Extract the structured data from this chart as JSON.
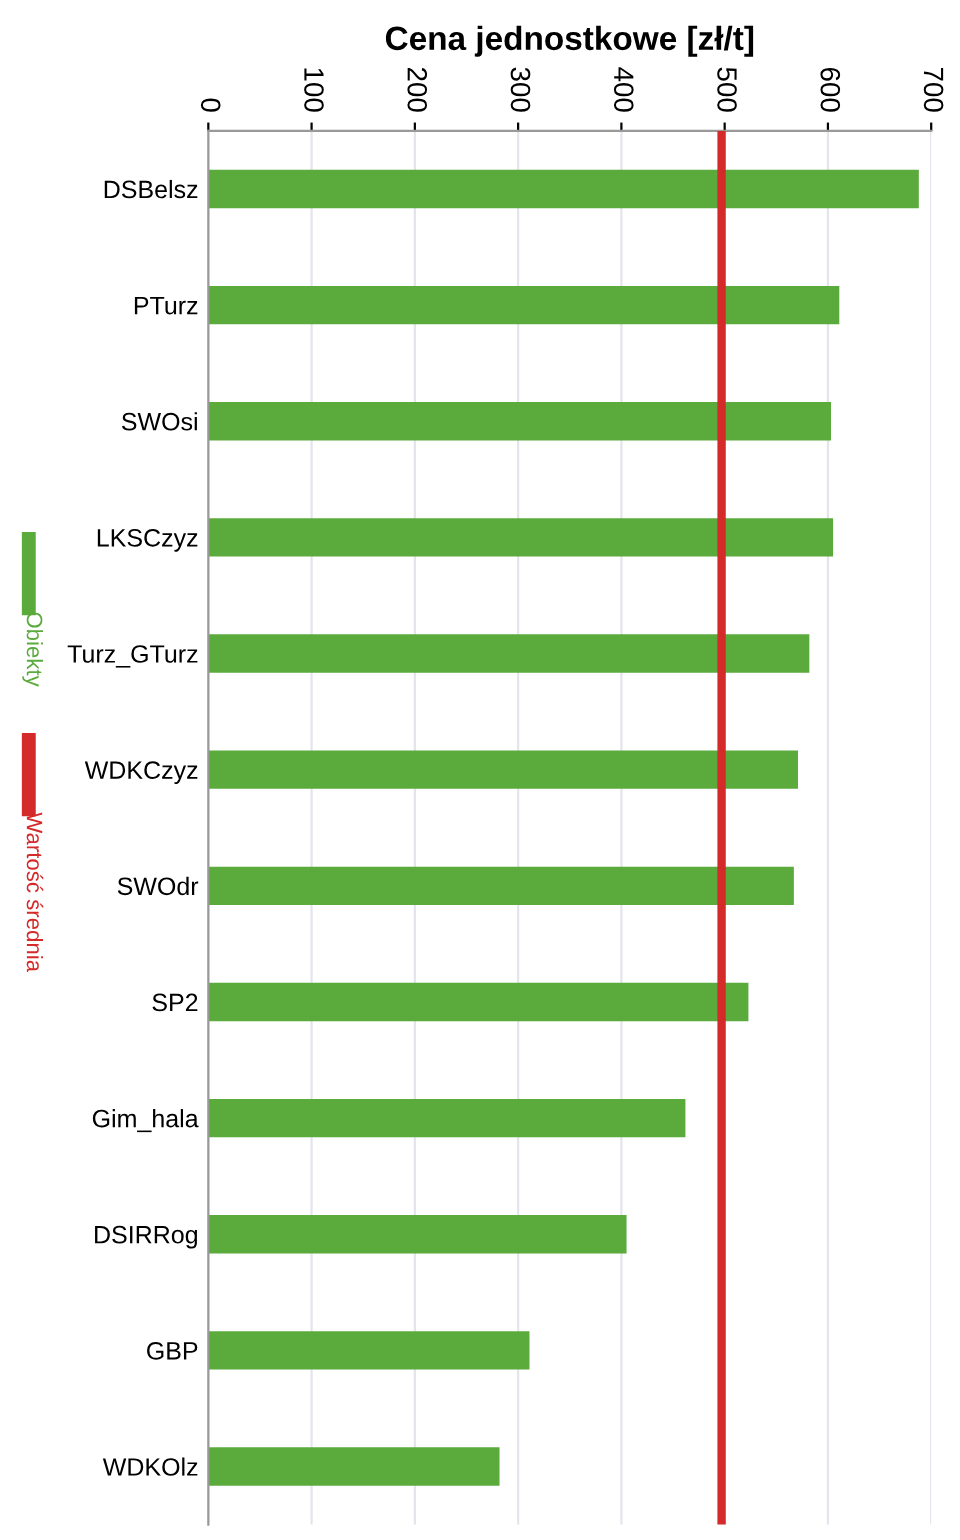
{
  "chart_data": {
    "type": "bar",
    "orientation": "horizontal",
    "xlabel": "Cena jednostkowe [zł/t]",
    "categories": [
      "DSBelsz",
      "PTurz",
      "SWOsi",
      "LKSCzyz",
      "Turz_GTurz",
      "WDKCzyz",
      "SWOdr",
      "SP2",
      "Gim_hala",
      "DSIRRog",
      "GBP",
      "WDKOlz"
    ],
    "series": [
      {
        "name": "Obiekty",
        "color": "#5aaa3c",
        "values": [
          688,
          611,
          603,
          605,
          582,
          571,
          567,
          523,
          462,
          405,
          311,
          282
        ]
      }
    ],
    "ref_lines": [
      {
        "axis": "x",
        "value": 497,
        "label": "Wartość średnia",
        "color": "#d42a2a"
      }
    ],
    "xlim": [
      0,
      700
    ],
    "xticks": [
      0,
      100,
      200,
      300,
      400,
      500,
      600,
      700
    ],
    "grid": "x",
    "legend": "left"
  }
}
